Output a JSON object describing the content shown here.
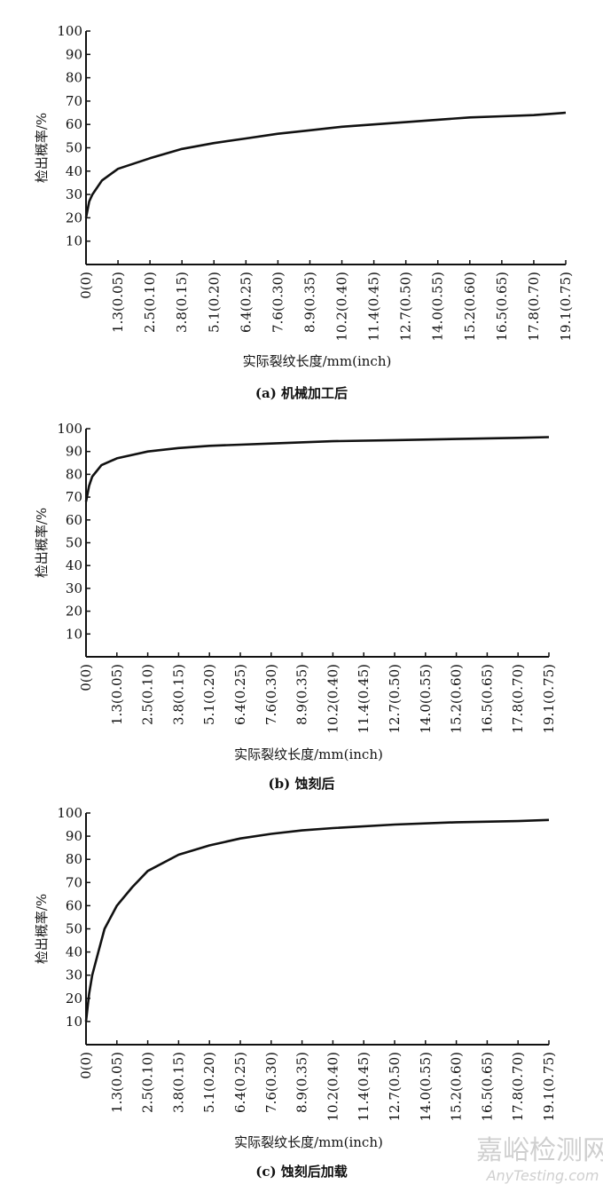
{
  "chart_data": [
    {
      "type": "line",
      "caption": "(a) 机械加工后",
      "xlabel": "实际裂纹长度/mm(inch)",
      "ylabel": "检出概率/%",
      "xlim": [
        0,
        0.75
      ],
      "ylim": [
        0,
        100
      ],
      "yticks": [
        10,
        20,
        30,
        40,
        50,
        60,
        70,
        80,
        90,
        100
      ],
      "xticks": [
        0,
        0.05,
        0.1,
        0.15,
        0.2,
        0.25,
        0.3,
        0.35,
        0.4,
        0.45,
        0.5,
        0.55,
        0.6,
        0.65,
        0.7,
        0.75
      ],
      "xtick_labels": [
        "0(0)",
        "1.3(0.05)",
        "2.5(0.10)",
        "3.8(0.15)",
        "5.1(0.20)",
        "6.4(0.25)",
        "7.6(0.30)",
        "8.9(0.35)",
        "10.2(0.40)",
        "11.4(0.45)",
        "12.7(0.50)",
        "14.0(0.55)",
        "15.2(0.60)",
        "16.5(0.65)",
        "17.8(0.70)",
        "19.1(0.75)"
      ],
      "grid": false,
      "x": [
        0,
        0.005,
        0.01,
        0.025,
        0.05,
        0.1,
        0.15,
        0.2,
        0.25,
        0.3,
        0.35,
        0.4,
        0.45,
        0.5,
        0.55,
        0.6,
        0.65,
        0.7,
        0.75
      ],
      "y": [
        20,
        27,
        30,
        36,
        41,
        45.5,
        49.5,
        52,
        54,
        56,
        57.5,
        59,
        60,
        61,
        62,
        63,
        63.5,
        64,
        65
      ]
    },
    {
      "type": "line",
      "caption": "(b) 蚀刻后",
      "xlabel": "实际裂纹长度/mm(inch)",
      "ylabel": "检出概率/%",
      "xlim": [
        0,
        0.75
      ],
      "ylim": [
        0,
        100
      ],
      "yticks": [
        10,
        20,
        30,
        40,
        50,
        60,
        70,
        80,
        90,
        100
      ],
      "xticks": [
        0,
        0.05,
        0.1,
        0.15,
        0.2,
        0.25,
        0.3,
        0.35,
        0.4,
        0.45,
        0.5,
        0.55,
        0.6,
        0.65,
        0.7,
        0.75
      ],
      "xtick_labels": [
        "0(0)",
        "1.3(0.05)",
        "2.5(0.10)",
        "3.8(0.15)",
        "5.1(0.20)",
        "6.4(0.25)",
        "7.6(0.30)",
        "8.9(0.35)",
        "10.2(0.40)",
        "11.4(0.45)",
        "12.7(0.50)",
        "14.0(0.55)",
        "15.2(0.60)",
        "16.5(0.65)",
        "17.8(0.70)",
        "19.1(0.75)"
      ],
      "grid": false,
      "x": [
        0,
        0.005,
        0.01,
        0.025,
        0.05,
        0.1,
        0.15,
        0.2,
        0.25,
        0.3,
        0.4,
        0.5,
        0.6,
        0.7,
        0.75
      ],
      "y": [
        68,
        75,
        79,
        84,
        87,
        90,
        91.5,
        92.5,
        93,
        93.5,
        94.5,
        95,
        95.5,
        96,
        96.3
      ]
    },
    {
      "type": "line",
      "caption": "(c) 蚀刻后加载",
      "xlabel": "实际裂纹长度/mm(inch)",
      "ylabel": "检出概率/%",
      "xlim": [
        0,
        0.75
      ],
      "ylim": [
        0,
        100
      ],
      "yticks": [
        10,
        20,
        30,
        40,
        50,
        60,
        70,
        80,
        90,
        100
      ],
      "xticks": [
        0,
        0.05,
        0.1,
        0.15,
        0.2,
        0.25,
        0.3,
        0.35,
        0.4,
        0.45,
        0.5,
        0.55,
        0.6,
        0.65,
        0.7,
        0.75
      ],
      "xtick_labels": [
        "0(0)",
        "1.3(0.05)",
        "2.5(0.10)",
        "3.8(0.15)",
        "5.1(0.20)",
        "6.4(0.25)",
        "7.6(0.30)",
        "8.9(0.35)",
        "10.2(0.40)",
        "11.4(0.45)",
        "12.7(0.50)",
        "14.0(0.55)",
        "15.2(0.60)",
        "16.5(0.65)",
        "17.8(0.70)",
        "19.1(0.75)"
      ],
      "grid": false,
      "x": [
        0,
        0.005,
        0.01,
        0.02,
        0.03,
        0.05,
        0.075,
        0.1,
        0.15,
        0.2,
        0.25,
        0.3,
        0.35,
        0.4,
        0.5,
        0.6,
        0.7,
        0.75
      ],
      "y": [
        10,
        22,
        30,
        40,
        50,
        60,
        68,
        75,
        82,
        86,
        89,
        91,
        92.5,
        93.5,
        95,
        96,
        96.5,
        97
      ]
    }
  ],
  "watermark": {
    "line1": "嘉峪检测网",
    "line2": "AnyTesting.com"
  }
}
